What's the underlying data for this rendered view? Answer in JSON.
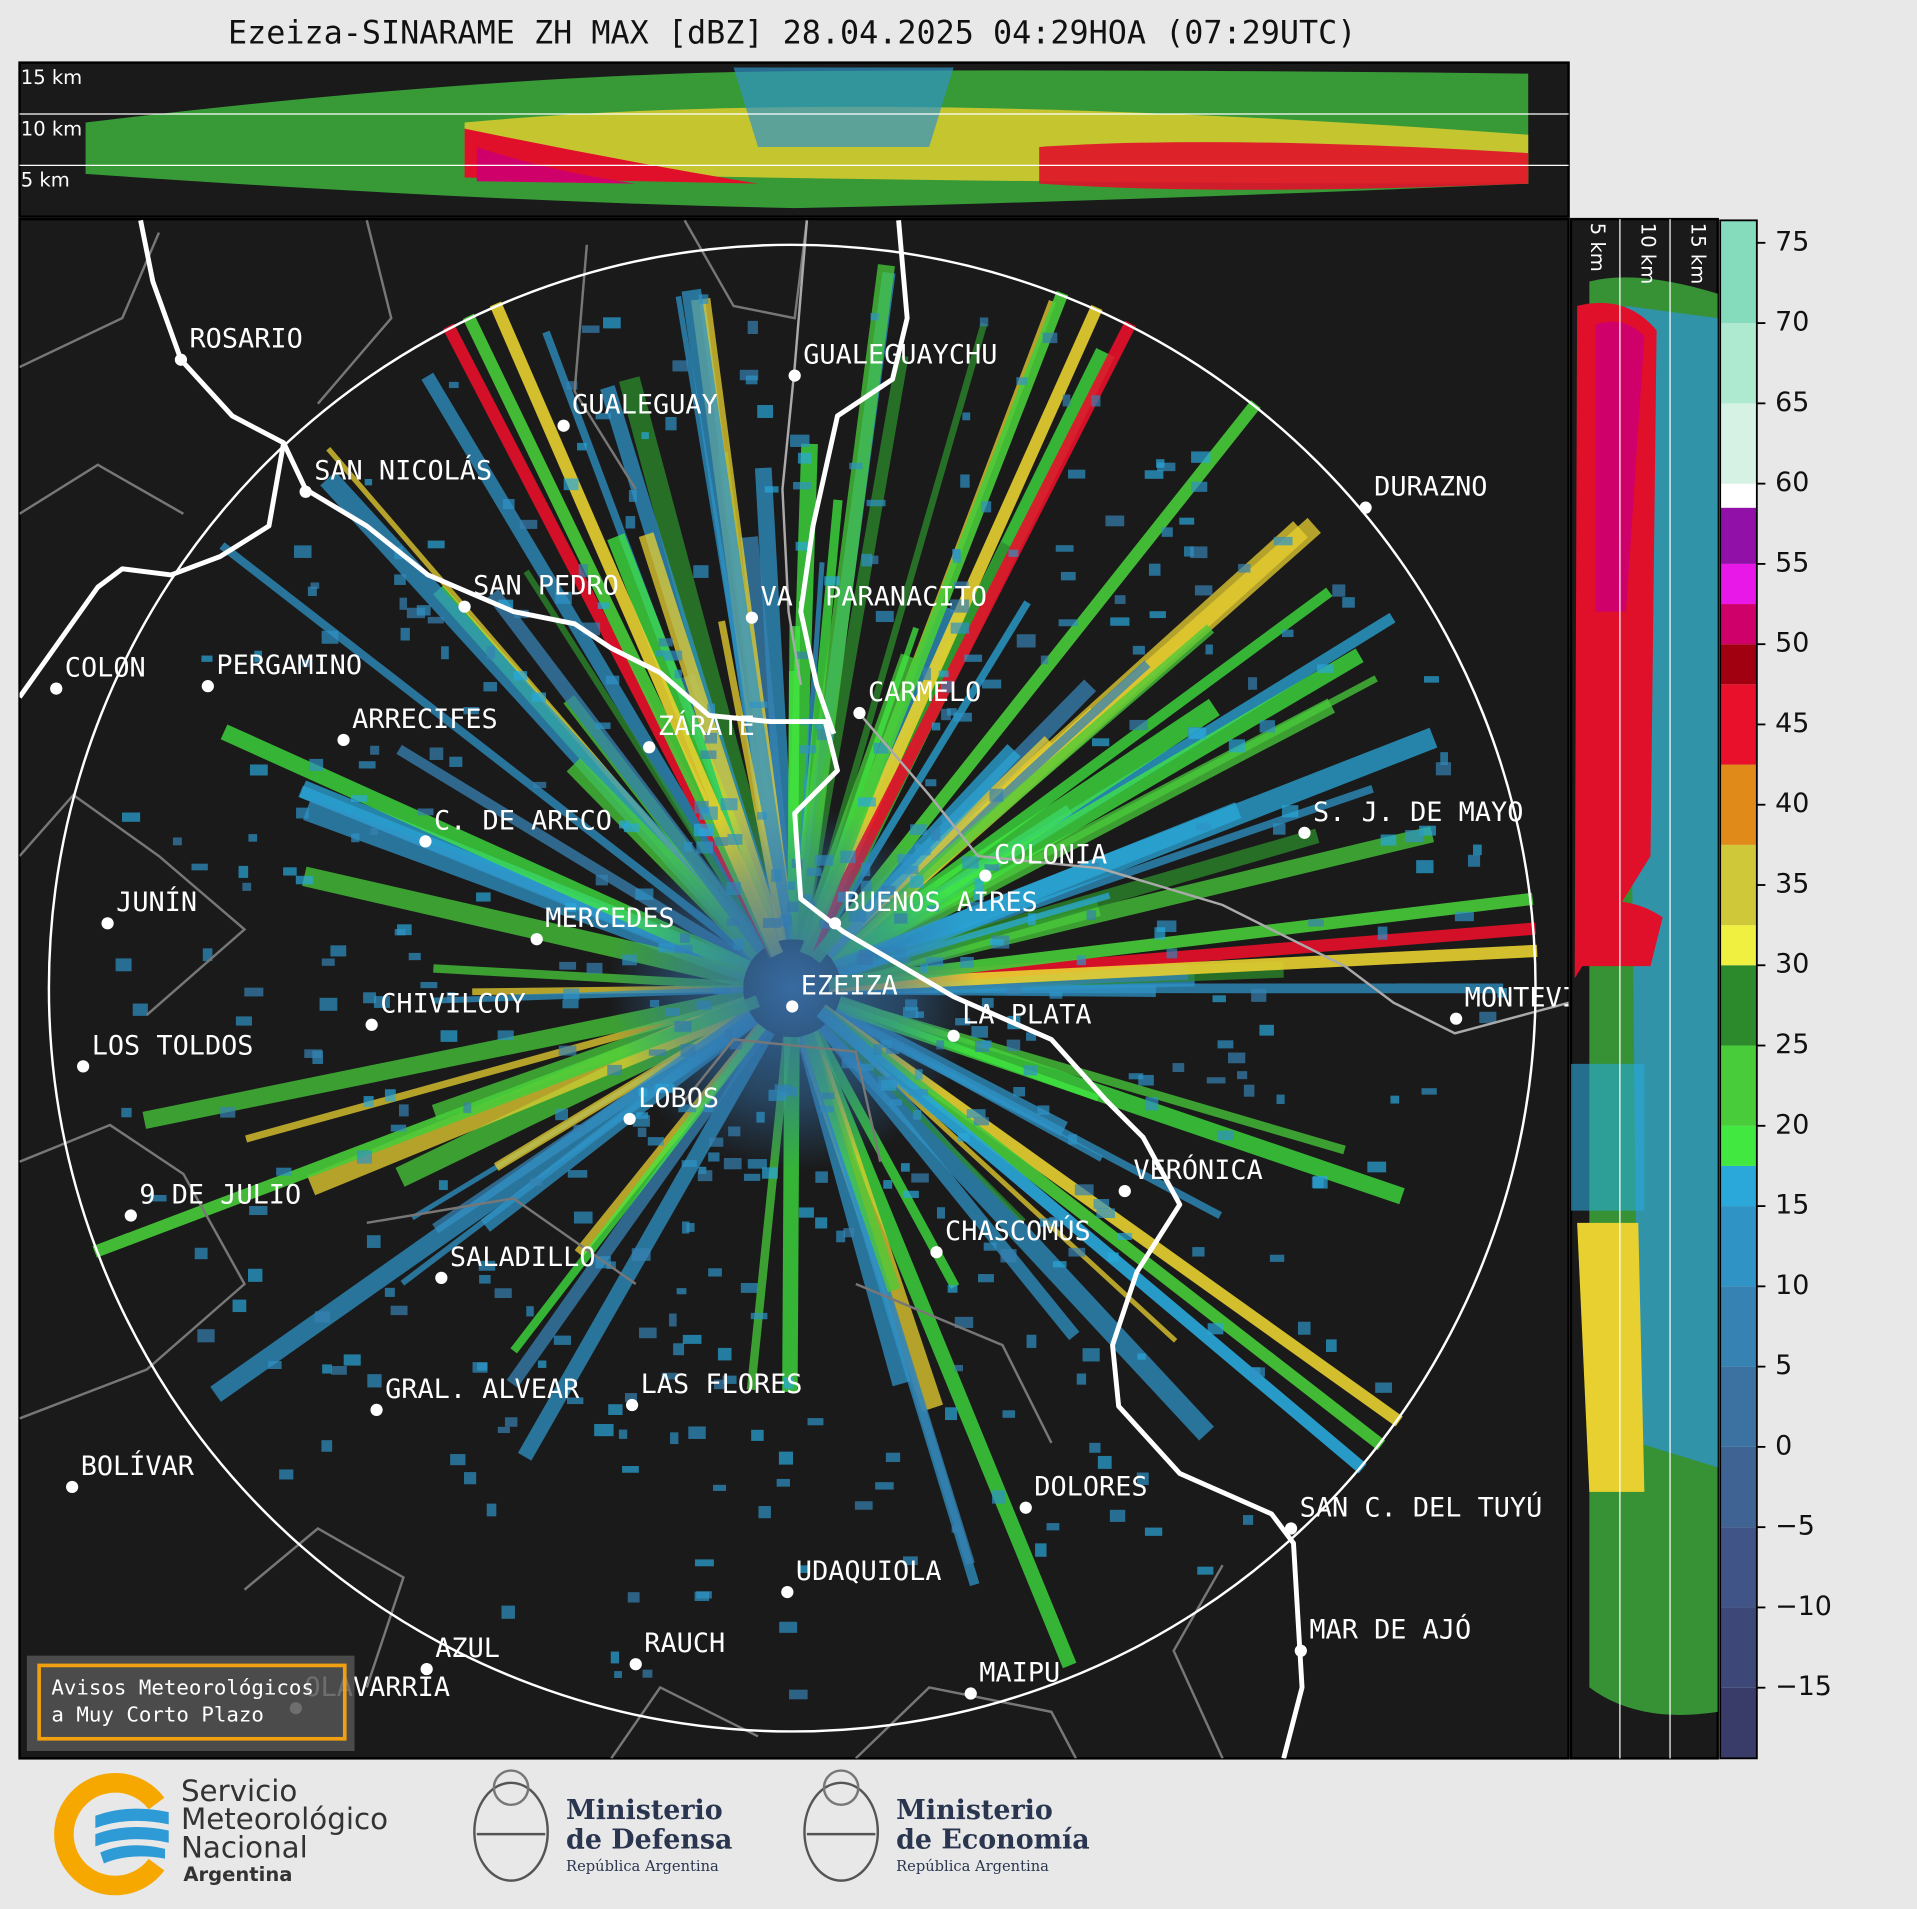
{
  "header": {
    "title": "Ezeiza-SINARAME ZH MAX [dBZ] 28.04.2025 04:29HOA (07:29UTC)"
  },
  "top_panel": {
    "height_labels": [
      "15 km",
      "10 km",
      "5 km"
    ]
  },
  "side_panel": {
    "height_labels": [
      "5 km",
      "10 km",
      "15 km"
    ]
  },
  "map": {
    "places": [
      "ROSARIO",
      "GUALEGUAYCHU",
      "GUALEGUAY",
      "SAN NICOLÁS",
      "DURAZNO",
      "SAN PEDRO",
      "VA. PARANACITO",
      "COLON",
      "PERGAMINO",
      "CARMELO",
      "ARRECIFES",
      "ZÁRATE",
      "S. J. DE MAYO",
      "C. DE ARECO",
      "COLONIA",
      "BUENOS AIRES",
      "JUNÍN",
      "MERCEDES",
      "EZEIZA",
      "MONTEVIDEO",
      "LA PLATA",
      "CHIVILCOY",
      "LOS TOLDOS",
      "LOBOS",
      "VERÓNICA",
      "9 DE JULIO",
      "CHASCOMÚS",
      "SALADILLO",
      "GRAL. ALVEAR",
      "LAS FLORES",
      "BOLÍVAR",
      "DOLORES",
      "SAN C. DEL TUYÚ",
      "UDAQUIOLA",
      "MAR DE AJÓ",
      "AZUL",
      "RAUCH",
      "OLAVARRÍA",
      "MAIPU"
    ]
  },
  "colorbar": {
    "lim": [
      -19.4,
      76.4
    ],
    "ticks": [
      75,
      70,
      65,
      60,
      55,
      50,
      45,
      40,
      35,
      30,
      25,
      20,
      15,
      10,
      5,
      0,
      {
        "value": -5,
        "label": "−5"
      },
      {
        "value": -10,
        "label": "−10"
      },
      {
        "value": -15,
        "label": "−15"
      }
    ],
    "bands": [
      {
        "from": -19.4,
        "to": -15,
        "color": "#393b68"
      },
      {
        "from": -15,
        "to": -10,
        "color": "#3e4878"
      },
      {
        "from": -10,
        "to": -5,
        "color": "#415487"
      },
      {
        "from": -5,
        "to": 0,
        "color": "#3f6393"
      },
      {
        "from": 0,
        "to": 5,
        "color": "#3b72a2"
      },
      {
        "from": 5,
        "to": 10,
        "color": "#3682b2"
      },
      {
        "from": 10,
        "to": 15,
        "color": "#2f93c6"
      },
      {
        "from": 15,
        "to": 17.5,
        "color": "#2aa8da"
      },
      {
        "from": 17.5,
        "to": 20,
        "color": "#40e840"
      },
      {
        "from": 20,
        "to": 25,
        "color": "#48cc3a"
      },
      {
        "from": 25,
        "to": 30,
        "color": "#2c8a2c"
      },
      {
        "from": 30,
        "to": 32.5,
        "color": "#f0f040"
      },
      {
        "from": 32.5,
        "to": 37.5,
        "color": "#cfc838"
      },
      {
        "from": 37.5,
        "to": 42.5,
        "color": "#e08a1a"
      },
      {
        "from": 42.5,
        "to": 47.5,
        "color": "#e8102a"
      },
      {
        "from": 47.5,
        "to": 50,
        "color": "#a00010"
      },
      {
        "from": 50,
        "to": 52.5,
        "color": "#d0006a"
      },
      {
        "from": 52.5,
        "to": 55,
        "color": "#e818e8"
      },
      {
        "from": 55,
        "to": 58.5,
        "color": "#9010a8"
      },
      {
        "from": 58.5,
        "to": 60,
        "color": "#ffffff"
      },
      {
        "from": 60,
        "to": 65,
        "color": "#d6f2e4"
      },
      {
        "from": 65,
        "to": 70,
        "color": "#aeead0"
      },
      {
        "from": 70,
        "to": 76.4,
        "color": "#84dcbc"
      }
    ]
  },
  "notice": {
    "lines": [
      "Avisos Meteorológicos",
      "a Muy Corto Plazo"
    ]
  },
  "footer": {
    "smn": [
      "Servicio",
      "Meteorológico",
      "Nacional",
      "Argentina"
    ],
    "defensa": {
      "title": [
        "Ministerio",
        "de Defensa"
      ],
      "sub": "República Argentina"
    },
    "economia": {
      "title": [
        "Ministerio",
        "de Economía"
      ],
      "sub": "República Argentina"
    }
  }
}
